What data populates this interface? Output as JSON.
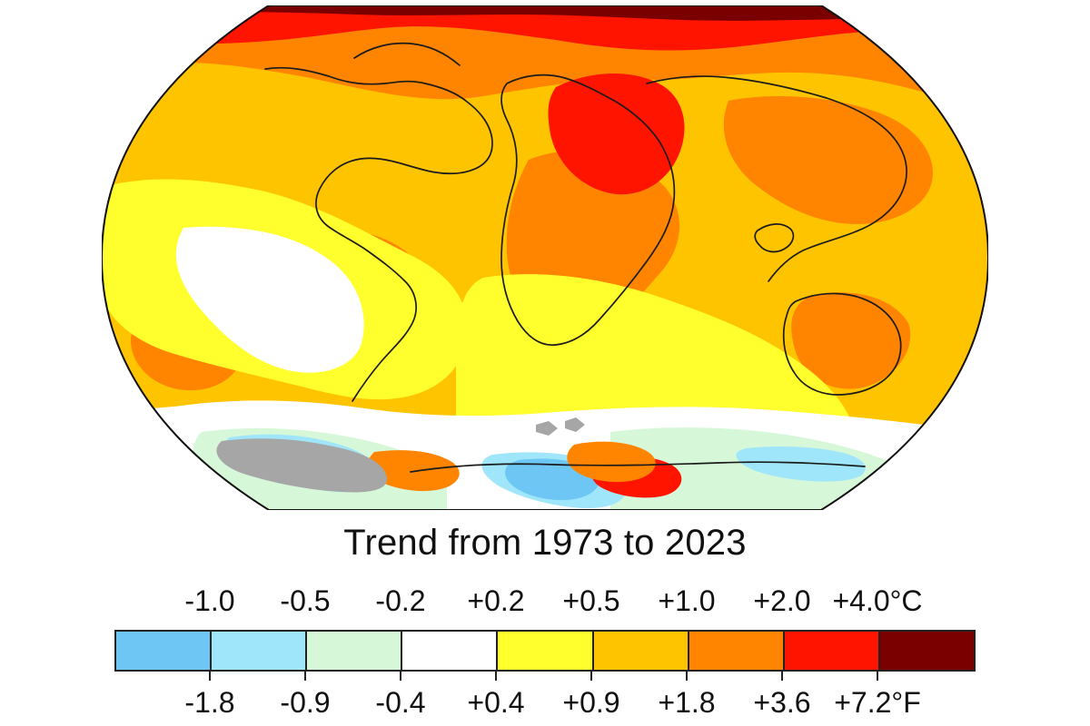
{
  "title": "Trend from 1973 to 2023",
  "legend": {
    "celsius_labels": [
      "-1.0",
      "-0.5",
      "-0.2",
      "+0.2",
      "+0.5",
      "+1.0",
      "+2.0",
      "+4.0°C"
    ],
    "fahrenheit_labels": [
      "-1.8",
      "-0.9",
      "-0.4",
      "+0.4",
      "+0.9",
      "+1.8",
      "+3.6",
      "+7.2°F"
    ],
    "colors": [
      "#6ec6f5",
      "#9fe6fb",
      "#d6f8d8",
      "#ffffff",
      "#ffff2e",
      "#ffc400",
      "#ff8400",
      "#ff1400",
      "#7a0000"
    ]
  },
  "map": {
    "projection": "Robinson-like world map",
    "no_data_color": "#a6a6a6",
    "coastline_color": "#1b1b1b"
  }
}
